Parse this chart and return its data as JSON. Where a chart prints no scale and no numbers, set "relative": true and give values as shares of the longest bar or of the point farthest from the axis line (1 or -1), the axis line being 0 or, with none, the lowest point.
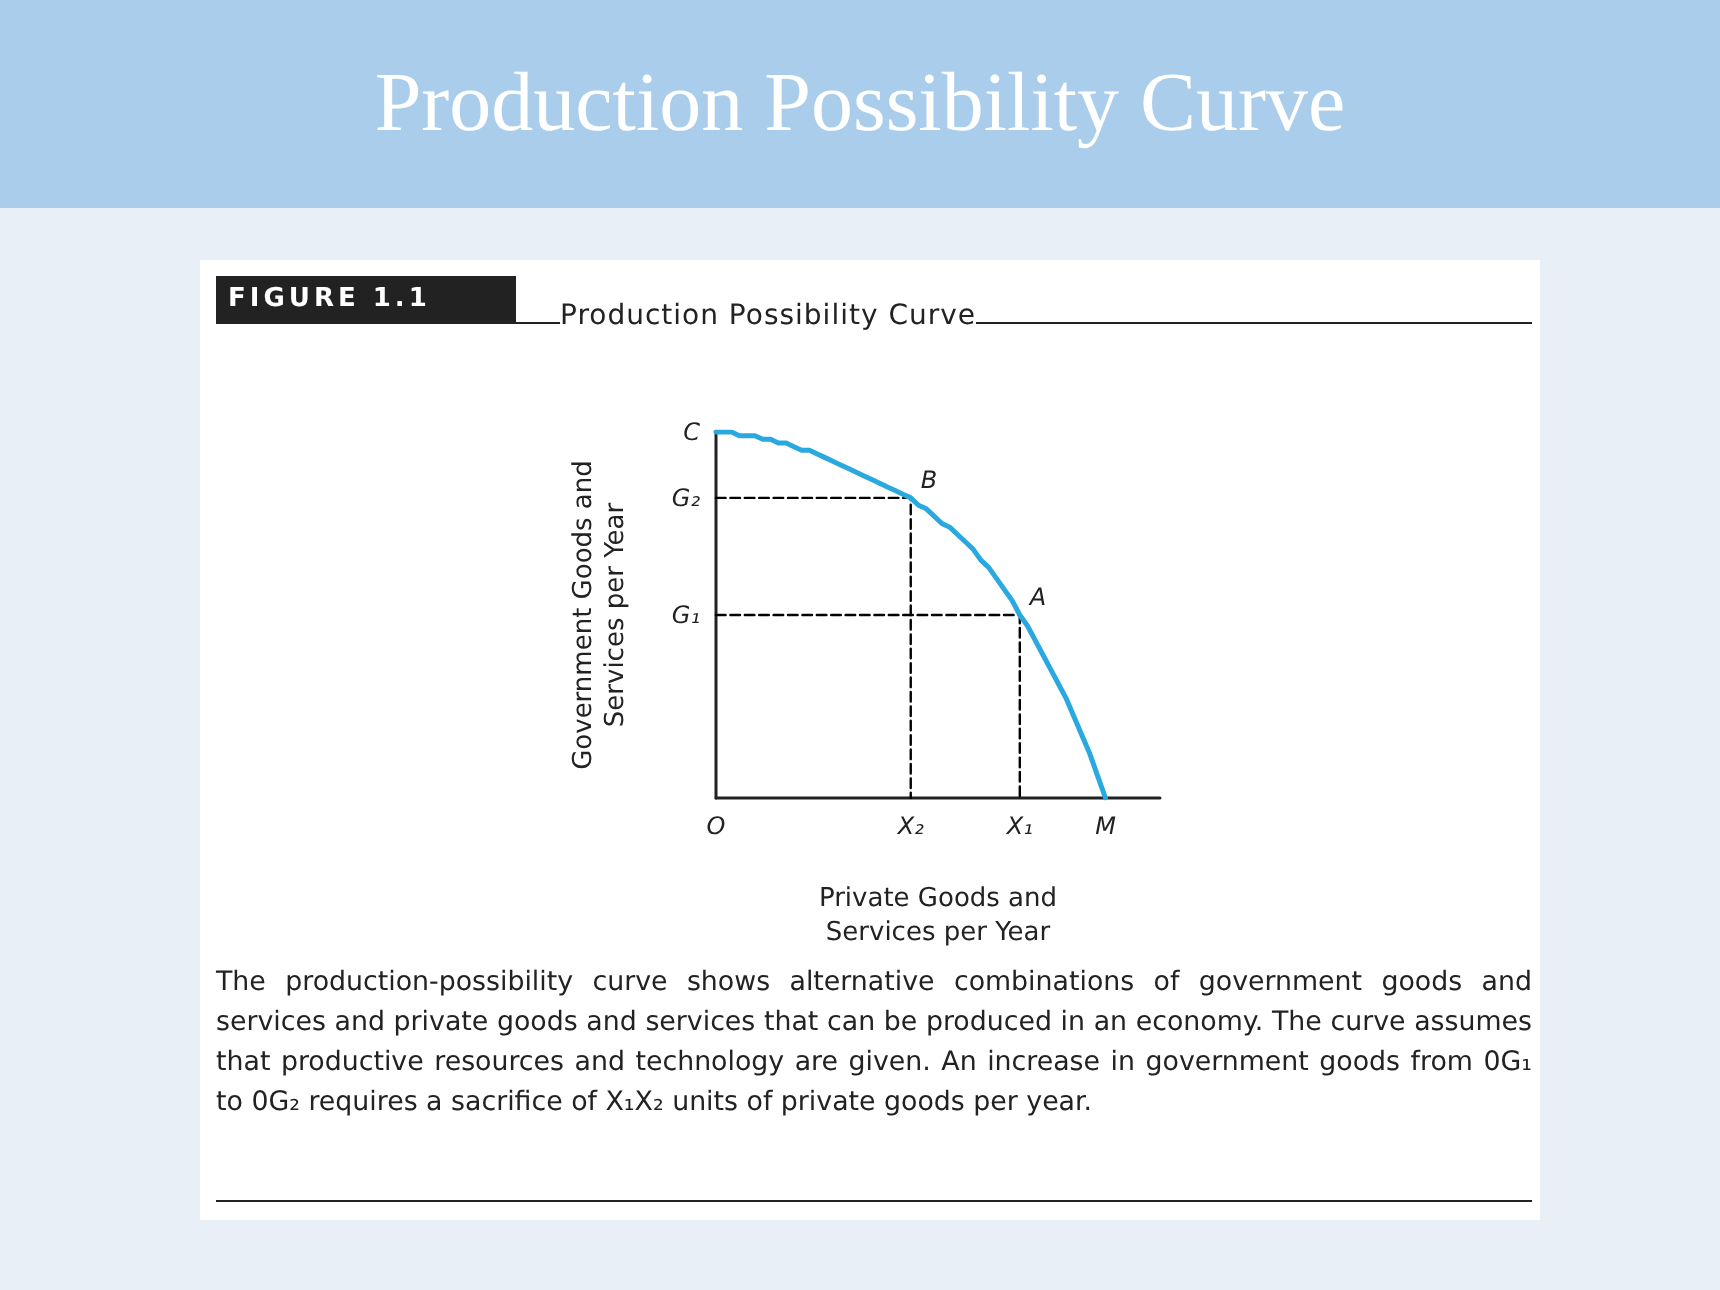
{
  "chart_data": {
    "type": "line",
    "relative": true,
    "title": "Production Possibility Curve",
    "subtitle": "Production Possibility Curve",
    "xlabel": "Private Goods and Services per Year",
    "ylabel": "Government Goods and Services per Year",
    "categories": [
      "O",
      null,
      null,
      null,
      null,
      null,
      null,
      null,
      null,
      null,
      null,
      null,
      null,
      null,
      null,
      null,
      null,
      null,
      null,
      null,
      null,
      null,
      null,
      null,
      null,
      "X₂",
      null,
      null,
      null,
      null,
      null,
      null,
      null,
      null,
      null,
      null,
      null,
      null,
      null,
      "X₁",
      null,
      null,
      null,
      null,
      null,
      null,
      null,
      null,
      null,
      null,
      "M",
      null,
      null,
      null,
      null,
      null,
      null,
      null
    ],
    "marker": "none",
    "series": [
      {
        "color": "#29a9e0",
        "values": [
          1.0,
          1.0,
          1.0,
          0.99,
          0.99,
          0.99,
          0.98,
          0.98,
          0.97,
          0.97,
          0.96,
          0.95,
          0.95,
          0.94,
          0.93,
          0.92,
          0.91,
          0.9,
          0.89,
          0.88,
          0.87,
          0.86,
          0.85,
          0.84,
          0.83,
          0.82,
          0.8,
          0.79,
          0.77,
          0.75,
          0.74,
          0.72,
          0.7,
          0.68,
          0.65,
          0.63,
          0.6,
          0.57,
          0.54,
          0.5,
          0.47,
          0.43,
          0.39,
          0.35,
          0.31,
          0.27,
          0.22,
          0.17,
          0.12,
          0.06,
          0,
          null,
          null,
          null,
          null,
          null,
          null,
          null
        ]
      },
      {
        "color": "#000000",
        "line_style": "dashed",
        "x": [
          "O",
          "X₂",
          "X₂"
        ],
        "values": [
          0.82,
          0.82,
          0
        ]
      },
      {
        "color": "#000000",
        "line_style": "dashed",
        "x": [
          "O",
          "X₁",
          "X₁"
        ],
        "values": [
          0.5,
          0.5,
          0
        ]
      }
    ],
    "annotations": [
      "FIGURE 1.1",
      "The production-possibility curve shows alternative combinations of government goods and services and private goods and services that can be produced in an economy. The curve assumes that productive resources and technology are given. An increase in government goods from 0G₁ to 0G₂ requires a sacrifice of X₁X₂ units of private goods per year.",
      {
        "text": "B",
        "x": "X₂",
        "y": 0.82
      },
      {
        "text": "A",
        "x": "X₁",
        "y": 0.5
      },
      {
        "text": "G₁",
        "x": "O",
        "y": 0.5
      },
      {
        "text": "G₂",
        "x": "O",
        "y": 0.82
      },
      {
        "text": "C",
        "x": "O",
        "y": 1
      }
    ]
  }
}
